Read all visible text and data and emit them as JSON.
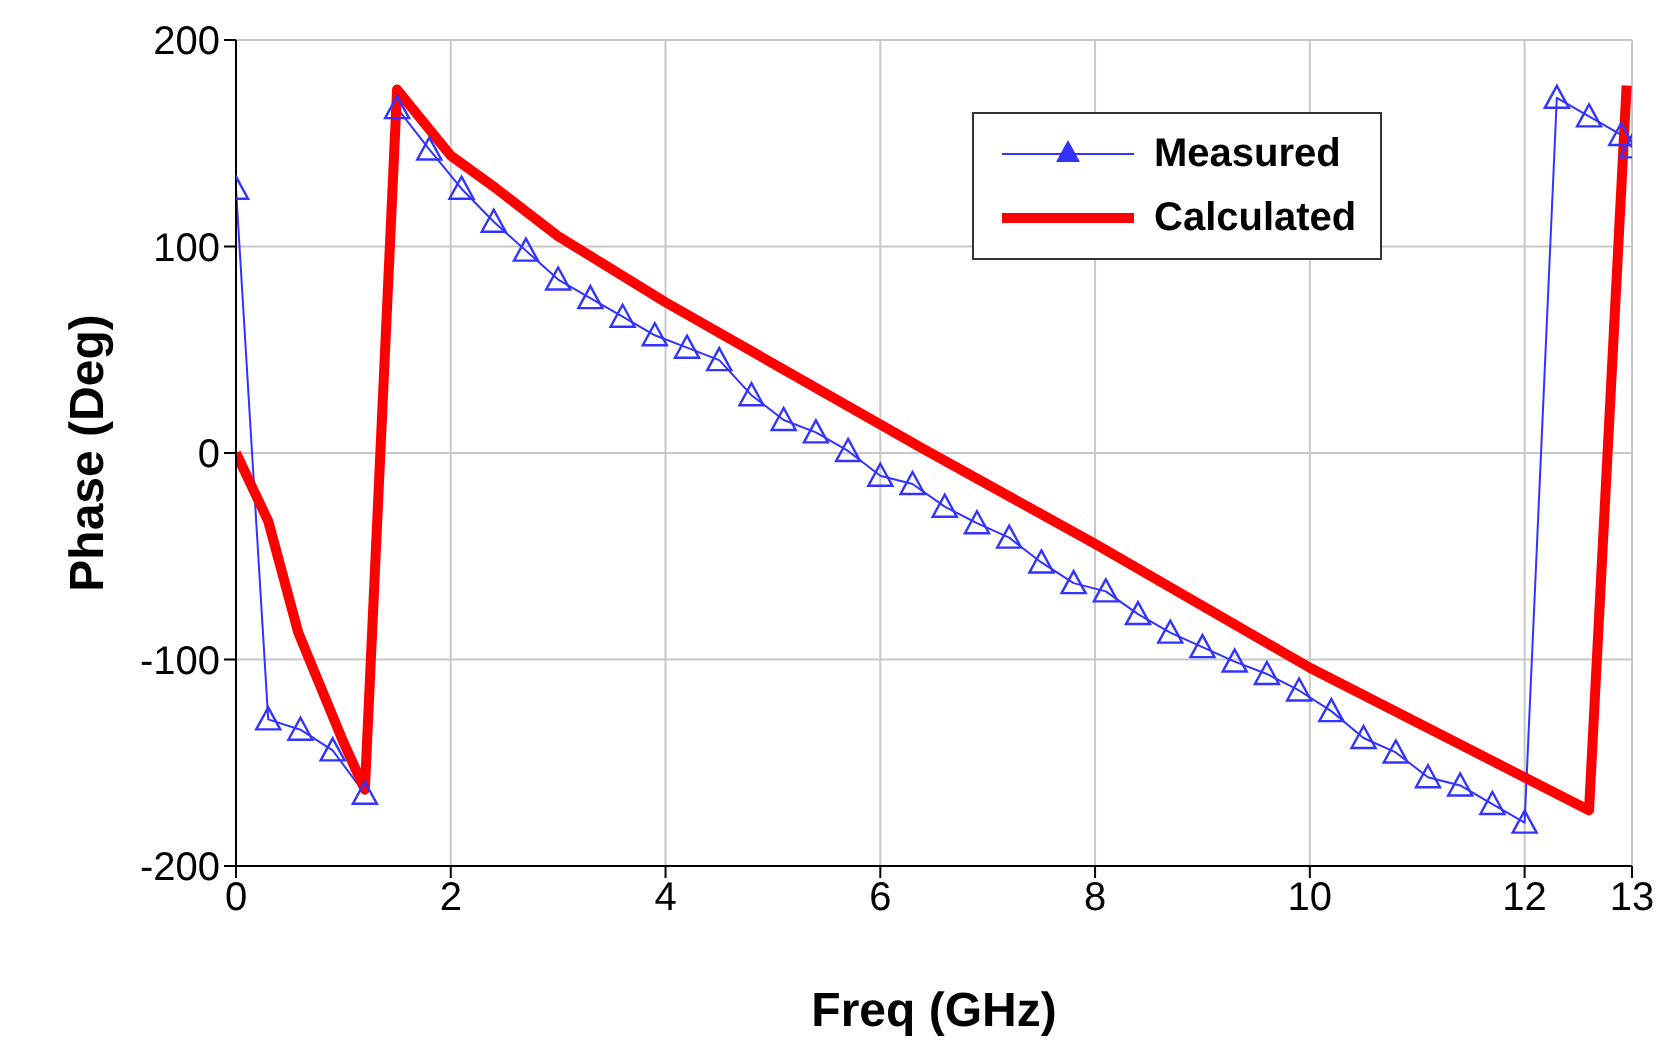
{
  "chart_data": {
    "type": "line",
    "xlabel": "Freq (GHz)",
    "ylabel": "Phase (Deg)",
    "xlim": [
      0,
      13
    ],
    "xticks": [
      0,
      2,
      4,
      6,
      8,
      10,
      12,
      13
    ],
    "ylim": [
      -200,
      200
    ],
    "yticks": [
      -200,
      -100,
      0,
      100,
      200
    ],
    "grid": true,
    "legend": "top right",
    "series": [
      {
        "name": "Measured",
        "color": "#3333ff",
        "marker": "triangle",
        "x": [
          0,
          0.3,
          0.6,
          0.9,
          1.2,
          1.5,
          1.8,
          2.1,
          2.4,
          2.7,
          3.0,
          3.3,
          3.6,
          3.9,
          4.2,
          4.5,
          4.8,
          5.1,
          5.4,
          5.7,
          6.0,
          6.3,
          6.6,
          6.9,
          7.2,
          7.5,
          7.8,
          8.1,
          8.4,
          8.7,
          9.0,
          9.3,
          9.6,
          9.9,
          10.2,
          10.5,
          10.8,
          11.1,
          11.4,
          11.7,
          12.0,
          12.3,
          12.6,
          12.9,
          13.0
        ],
        "values": [
          128,
          -129,
          -134,
          -144,
          -165,
          167,
          147,
          128,
          112,
          98,
          84,
          75,
          66,
          57,
          51,
          45,
          28,
          16,
          10,
          1,
          -11,
          -15,
          -26,
          -34,
          -41,
          -53,
          -63,
          -67,
          -78,
          -87,
          -94,
          -101,
          -107,
          -115,
          -125,
          -138,
          -145,
          -157,
          -161,
          -170,
          -179,
          172,
          163,
          154,
          148
        ]
      },
      {
        "name": "Calculated",
        "color": "#ff0000",
        "marker": "none",
        "x": [
          0,
          0.3,
          0.58,
          1.0,
          1.2,
          1.5,
          2.0,
          2.4,
          3.0,
          4.0,
          6.4,
          8.0,
          10.0,
          12.6,
          12.95
        ],
        "values": [
          0,
          -33,
          -87,
          -140,
          -163,
          176,
          144,
          129,
          105,
          73,
          2,
          -44,
          -104,
          -173,
          178
        ]
      }
    ]
  }
}
